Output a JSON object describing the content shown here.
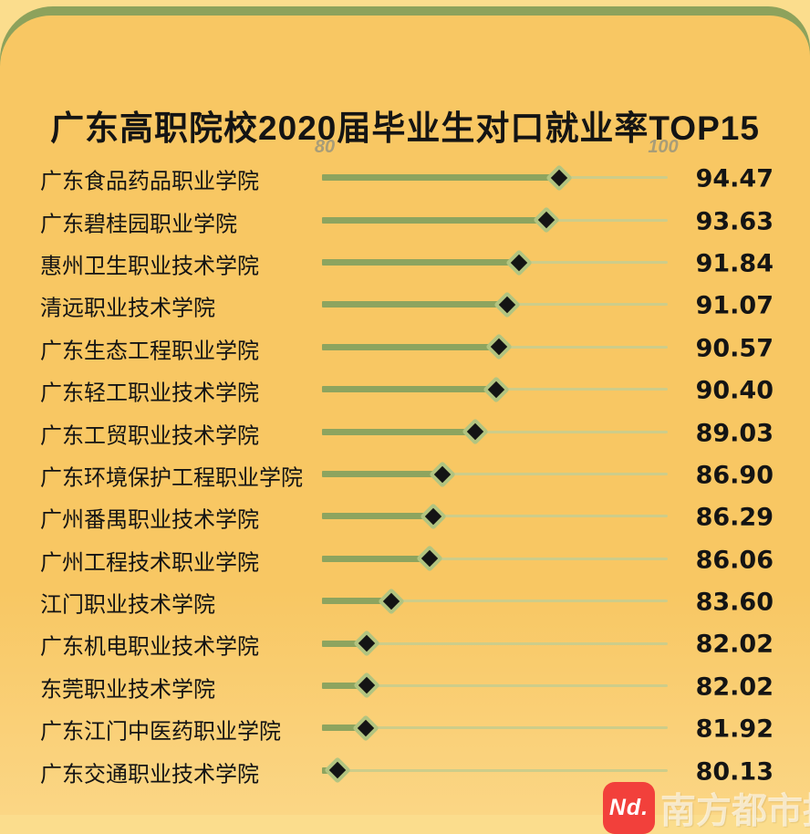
{
  "page": {
    "title": "广东高职院校2020届毕业生对口就业率TOP15"
  },
  "chart_data": {
    "type": "bar",
    "variant": "horizontal-lollipop",
    "title": "广东高职院校2020届毕业生对口就业率TOP15",
    "xlabel": "",
    "ylabel": "",
    "xlim": [
      80,
      100
    ],
    "xticks": [
      "80",
      "100"
    ],
    "grid": false,
    "legend": "none",
    "marker": "diamond",
    "categories": [
      "广东食品药品职业学院",
      "广东碧桂园职业学院",
      "惠州卫生职业技术学院",
      "清远职业技术学院",
      "广东生态工程职业学院",
      "广东轻工职业技术学院",
      "广东工贸职业技术学院",
      "广东环境保护工程职业学院",
      "广州番禺职业技术学院",
      "广州工程技术职业学院",
      "江门职业技术学院",
      "广东机电职业技术学院",
      "东莞职业技术学院",
      "广东江门中医药职业学院",
      "广东交通职业技术学院"
    ],
    "values": [
      94.47,
      93.63,
      91.84,
      91.07,
      90.57,
      90.4,
      89.03,
      86.9,
      86.29,
      86.06,
      83.6,
      82.02,
      82.02,
      81.92,
      80.13
    ],
    "value_labels": [
      "94.47",
      "93.63",
      "91.84",
      "91.07",
      "90.57",
      "90.40",
      "89.03",
      "86.90",
      "86.29",
      "86.06",
      "83.60",
      "82.02",
      "82.02",
      "81.92",
      "80.13"
    ]
  },
  "footer": {
    "logo_text": "Nd.",
    "brand_text": "南方都市报"
  },
  "colors": {
    "background": "#fbdd8d",
    "green_band": "#8da25c",
    "card": "#f8c763",
    "track_dark": "#8da45f",
    "track_light": "#cdcd8a",
    "diamond_fill": "#141414",
    "diamond_border": "#b2c480",
    "text": "#141414",
    "axis_label": "#a89d78",
    "logo_red": "#f2403b"
  }
}
